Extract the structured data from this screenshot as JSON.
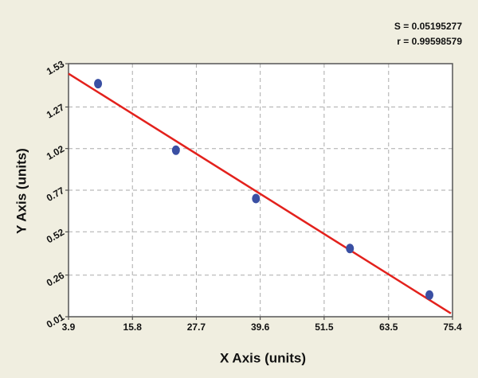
{
  "chart_data": {
    "type": "scatter",
    "annotations": [
      "S = 0.05195277",
      "r = 0.99598579"
    ],
    "x_label": "X Axis (units)",
    "y_label": "Y Axis (units)",
    "xlim": [
      3.9,
      75.4
    ],
    "xticks": [
      3.9,
      15.8,
      27.7,
      39.6,
      51.5,
      63.5,
      75.4
    ],
    "ylim": [
      0.01,
      1.53
    ],
    "yticks": [
      0.01,
      0.26,
      0.52,
      0.77,
      1.02,
      1.27,
      1.53
    ],
    "grid": true,
    "series": [
      {
        "mode": "markers",
        "color": "#3a4fa3",
        "x": [
          9.4,
          23.9,
          38.8,
          56.3,
          71.1
        ],
        "values": [
          1.41,
          1.01,
          0.72,
          0.42,
          0.14
        ]
      },
      {
        "mode": "line",
        "color": "#e3211c",
        "x": [
          3.9,
          75.1
        ],
        "values": [
          1.47,
          0.03
        ]
      }
    ]
  }
}
